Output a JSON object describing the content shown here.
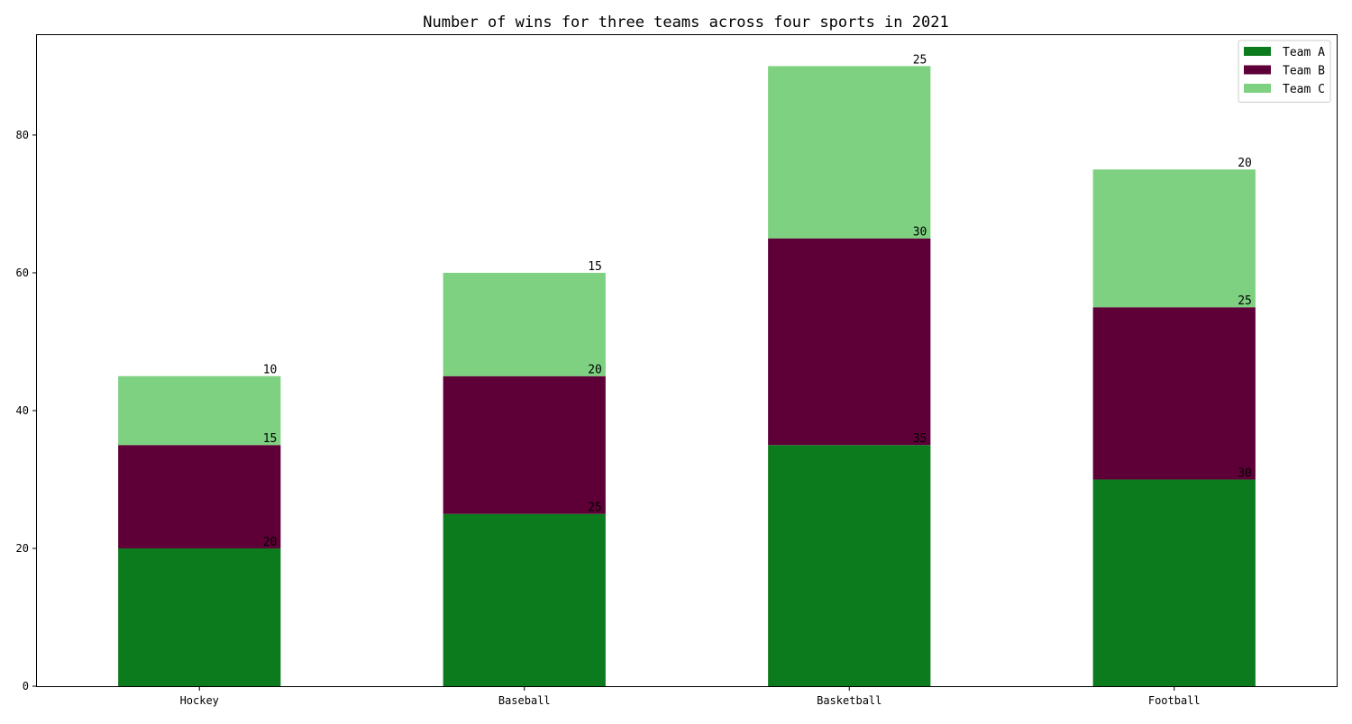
{
  "chart_data": {
    "type": "bar",
    "stacked": true,
    "title": "Number of wins for three teams across four sports in 2021",
    "xlabel": "",
    "ylabel": "",
    "categories": [
      "Hockey",
      "Baseball",
      "Basketball",
      "Football"
    ],
    "series": [
      {
        "name": "Team A",
        "values": [
          20,
          25,
          35,
          30
        ],
        "color": "#0c7b1e"
      },
      {
        "name": "Team B",
        "values": [
          15,
          20,
          30,
          25
        ],
        "color": "#5e0037"
      },
      {
        "name": "Team C",
        "values": [
          10,
          15,
          25,
          20
        ],
        "color": "#7dd180"
      }
    ],
    "ylim": [
      0,
      94.5
    ],
    "yticks": [
      0,
      20,
      40,
      60,
      80
    ],
    "grid": false,
    "legend_position": "top-right"
  }
}
